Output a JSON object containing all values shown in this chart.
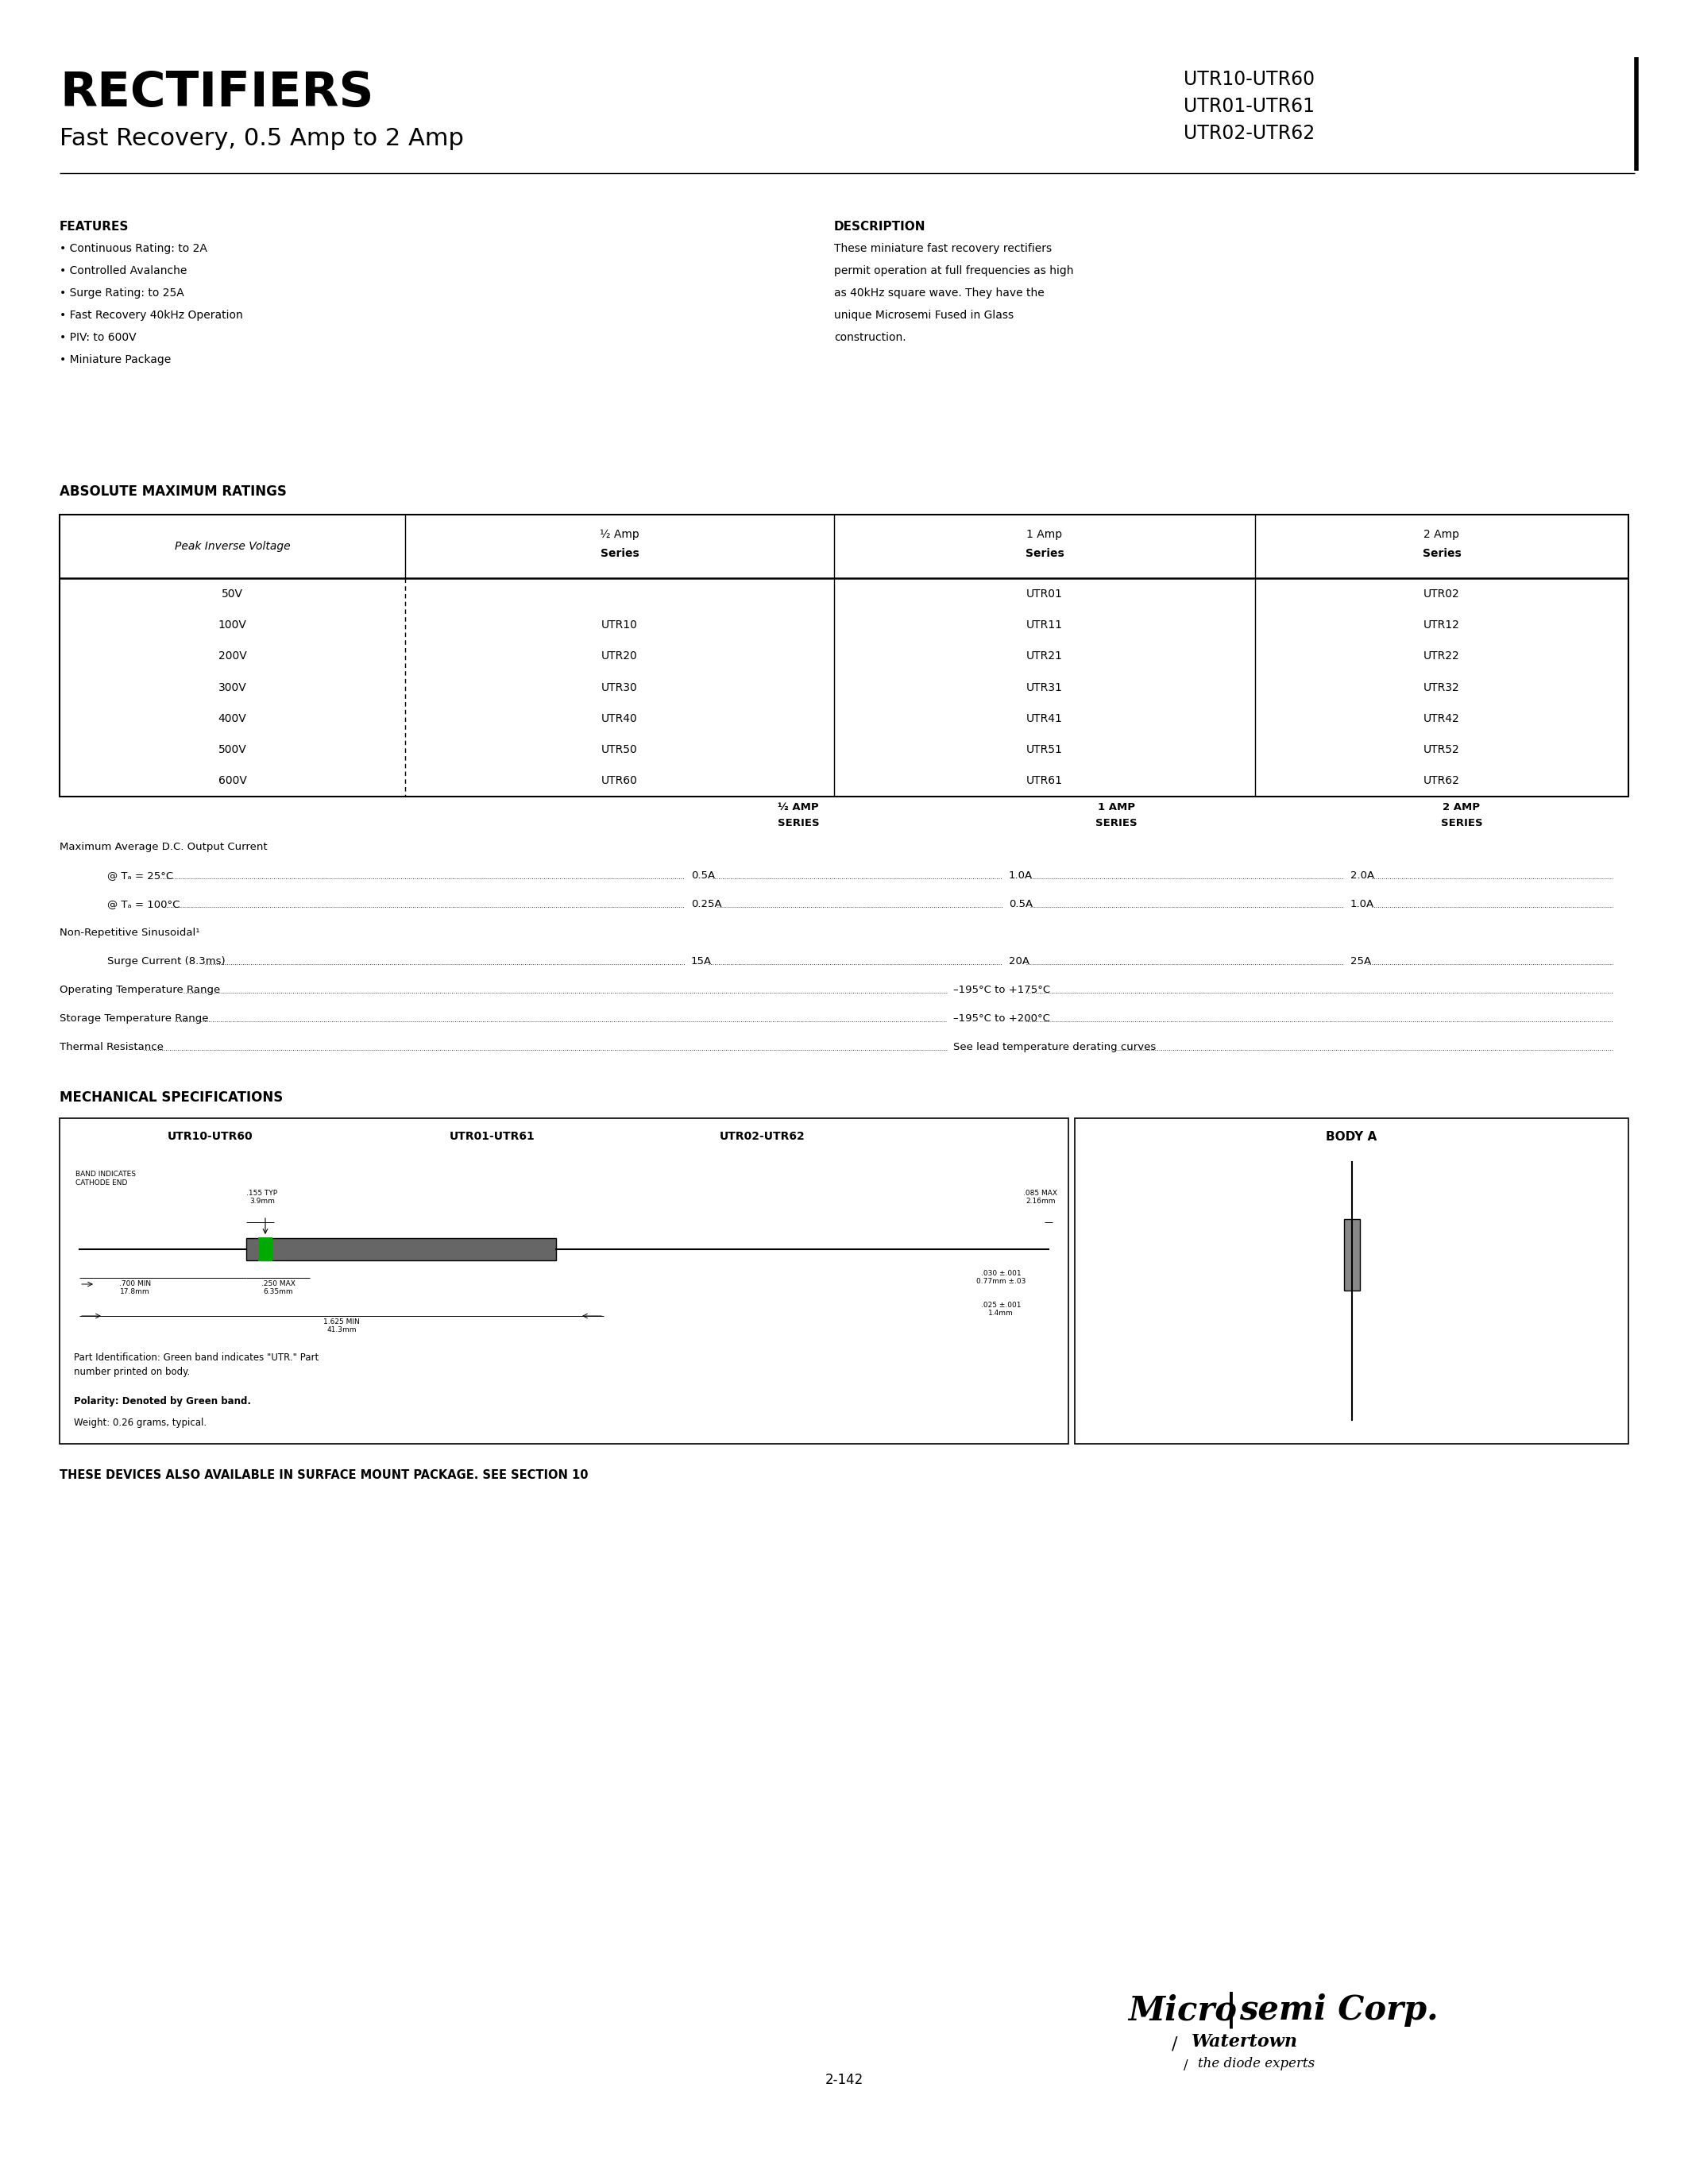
{
  "bg_color": "#ffffff",
  "title_main": "RECTIFIERS",
  "subtitle": "Fast Recovery, 0.5 Amp to 2 Amp",
  "part_numbers_right": [
    "UTR10-UTR60",
    "UTR01-UTR61",
    "UTR02-UTR62"
  ],
  "features_title": "FEATURES",
  "features": [
    "Continuous Rating: to 2A",
    "Controlled Avalanche",
    "Surge Rating: to 25A",
    "Fast Recovery 40kHz Operation",
    "PIV: to 600V",
    "Miniature Package"
  ],
  "description_title": "DESCRIPTION",
  "description_lines": [
    "These miniature fast recovery rectifiers",
    "permit operation at full frequencies as high",
    "as 40kHz square wave. They have the",
    "unique Microsemi Fused in Glass",
    "construction."
  ],
  "abs_max_title": "ABSOLUTE MAXIMUM RATINGS",
  "table_col_headers": [
    "Peak Inverse Voltage",
    "½ Amp\nSeries",
    "1 Amp\nSeries",
    "2 Amp\nSeries"
  ],
  "table_rows": [
    [
      "50V",
      "",
      "UTR01",
      "UTR02"
    ],
    [
      "100V",
      "UTR10",
      "UTR11",
      "UTR12"
    ],
    [
      "200V",
      "UTR20",
      "UTR21",
      "UTR22"
    ],
    [
      "300V",
      "UTR30",
      "UTR31",
      "UTR32"
    ],
    [
      "400V",
      "UTR40",
      "UTR41",
      "UTR42"
    ],
    [
      "500V",
      "UTR50",
      "UTR51",
      "UTR52"
    ],
    [
      "600V",
      "UTR60",
      "UTR61",
      "UTR62"
    ]
  ],
  "elec_col_headers": [
    "½ AMP\nSERIES",
    "1 AMP\nSERIES",
    "2 AMP\nSERIES"
  ],
  "elec_rows": [
    {
      "label": "Maximum Average D.C. Output Current",
      "indent": false,
      "v0": "",
      "v1": "",
      "v2": ""
    },
    {
      "label": "@ Tₐ = 25°C",
      "indent": true,
      "v0": "0.5A",
      "v1": "1.0A",
      "v2": "2.0A"
    },
    {
      "label": "@ Tₐ = 100°C",
      "indent": true,
      "v0": "0.25A",
      "v1": "0.5A",
      "v2": "1.0A"
    },
    {
      "label": "Non-Repetitive Sinusoidal¹",
      "indent": false,
      "v0": "",
      "v1": "",
      "v2": ""
    },
    {
      "label": "Surge Current (8.3ms)",
      "indent": true,
      "v0": "15A",
      "v1": "20A",
      "v2": "25A"
    },
    {
      "label": "Operating Temperature Range",
      "indent": false,
      "v0": "",
      "v1": "–195°C to +175°C",
      "v2": ""
    },
    {
      "label": "Storage Temperature Range",
      "indent": false,
      "v0": "",
      "v1": "–195°C to +200°C",
      "v2": ""
    },
    {
      "label": "Thermal Resistance",
      "indent": false,
      "v0": "",
      "v1": "See lead temperature derating curves",
      "v2": ""
    }
  ],
  "mech_title": "MECHANICAL SPECIFICATIONS",
  "surface_note": "THESE DEVICES ALSO AVAILABLE IN SURFACE MOUNT PACKAGE. SEE SECTION 10",
  "page_number": "2-142",
  "logo_main": "Micro|semi Corp.",
  "logo_sub1": "Watertown",
  "logo_sub2": "the diode experts"
}
